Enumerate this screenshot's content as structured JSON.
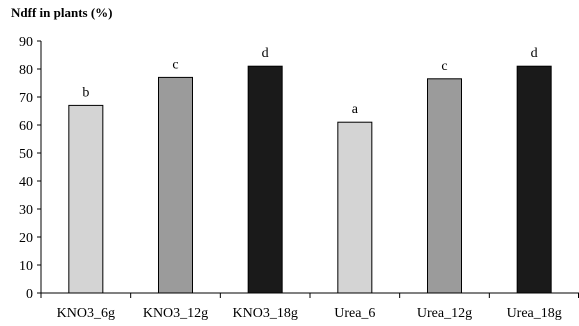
{
  "chart_data": {
    "type": "bar",
    "title": "Ndff in plants (%)",
    "xlabel": "",
    "ylabel": "",
    "categories": [
      "KNO3_6g",
      "KNO3_12g",
      "KNO3_18g",
      "Urea_6",
      "Urea_12g",
      "Urea_18g"
    ],
    "values": [
      67,
      77,
      81,
      61,
      76.5,
      81
    ],
    "significance_letters": [
      "b",
      "c",
      "d",
      "a",
      "c",
      "d"
    ],
    "bar_colors": [
      "#d4d4d4",
      "#9b9b9b",
      "#1a1a1a",
      "#d4d4d4",
      "#9b9b9b",
      "#1a1a1a"
    ],
    "ylim": [
      0,
      90
    ],
    "yticks": [
      0,
      10,
      20,
      30,
      40,
      50,
      60,
      70,
      80,
      90
    ],
    "grid": false,
    "legend": false
  }
}
